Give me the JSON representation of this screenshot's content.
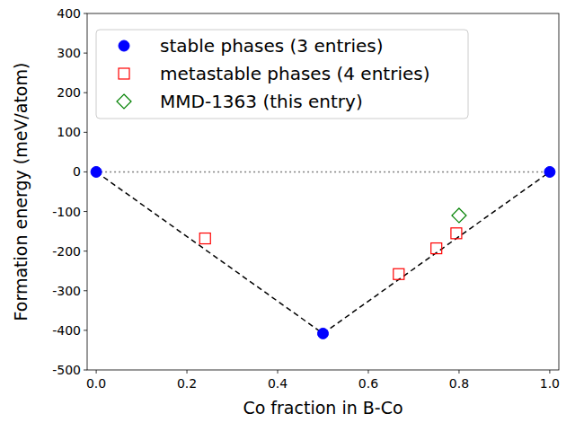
{
  "chart_data": {
    "type": "scatter",
    "x_label": "Co fraction in B-Co",
    "y_label": "Formation energy (meV/atom)",
    "xlim": [
      -0.02,
      1.02
    ],
    "xticks": [
      {
        "value": 0,
        "label": "0.0"
      },
      0.2,
      0.4,
      0.6,
      0.8,
      {
        "value": 1,
        "label": "1.0"
      }
    ],
    "ylim": [
      -500,
      400
    ],
    "yticks": [
      -500,
      -400,
      -300,
      -200,
      -100,
      0,
      100,
      200,
      300,
      400
    ],
    "legend": "upper left",
    "series": [
      {
        "type": "line",
        "color": "gray",
        "line_style": "dotted",
        "x": [
          0,
          1
        ],
        "values": [
          0,
          0
        ]
      },
      {
        "type": "line",
        "color": "black",
        "line_style": "dashed",
        "x": [
          0,
          0.5,
          1
        ],
        "values": [
          0,
          -408,
          0
        ]
      },
      {
        "name": "stable phases (3 entries)",
        "color": "blue",
        "marker": "circle",
        "x": [
          0,
          0.5,
          1
        ],
        "values": [
          0,
          -408,
          0
        ]
      },
      {
        "name": "metastable phases (4 entries)",
        "color": "red",
        "marker": "square",
        "x": [
          0.24,
          0.667,
          0.75,
          0.794
        ],
        "values": [
          -168,
          -258,
          -193,
          -155
        ]
      },
      {
        "name": "MMD-1363 (this entry)",
        "color": "green",
        "marker": "diamond",
        "x": [
          0.8
        ],
        "values": [
          -110
        ]
      }
    ]
  }
}
